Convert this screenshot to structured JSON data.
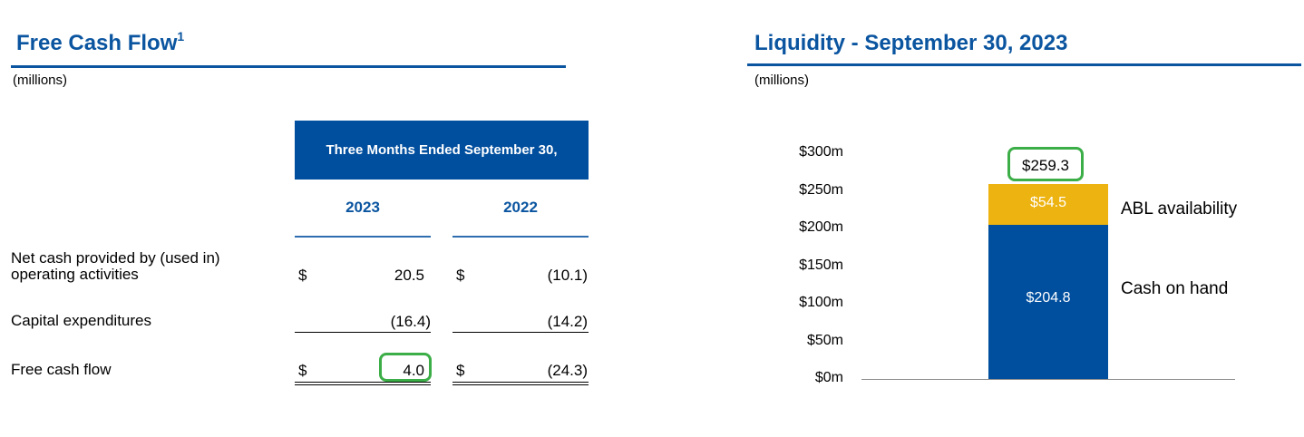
{
  "left": {
    "title": "Free Cash Flow",
    "title_sup": "1",
    "units": "(millions)",
    "table": {
      "header": "Three Months Ended September 30,",
      "columns": [
        "2023",
        "2022"
      ],
      "rows": [
        {
          "label": "Net cash provided by (used in) operating activities",
          "currency": [
            "$",
            "$"
          ],
          "values": [
            "20.5",
            "(10.1)"
          ]
        },
        {
          "label": "Capital expenditures",
          "currency": [
            "",
            ""
          ],
          "values": [
            "(16.4)",
            "(14.2)"
          ]
        },
        {
          "label": "Free cash flow",
          "currency": [
            "$",
            "$"
          ],
          "values": [
            "4.0",
            "(24.3)"
          ]
        }
      ]
    }
  },
  "right": {
    "title": "Liquidity - September 30, 2023",
    "units": "(millions)"
  },
  "chart_data": {
    "type": "bar",
    "stacked": true,
    "categories": [
      ""
    ],
    "series": [
      {
        "name": "Cash on hand",
        "values": [
          204.8
        ],
        "label": "$204.8",
        "color": "#004e9e"
      },
      {
        "name": "ABL availability",
        "values": [
          54.5
        ],
        "label": "$54.5",
        "color": "#edb311"
      }
    ],
    "total_label": "$259.3",
    "ylim": [
      0,
      300
    ],
    "yticks": [
      0,
      50,
      100,
      150,
      200,
      250,
      300
    ],
    "ytick_labels": [
      "$0m",
      "$50m",
      "$100m",
      "$150m",
      "$200m",
      "$250m",
      "$300m"
    ],
    "grid": false,
    "colors": {
      "highlight": "#3cae47",
      "title": "#0b55a0"
    }
  }
}
